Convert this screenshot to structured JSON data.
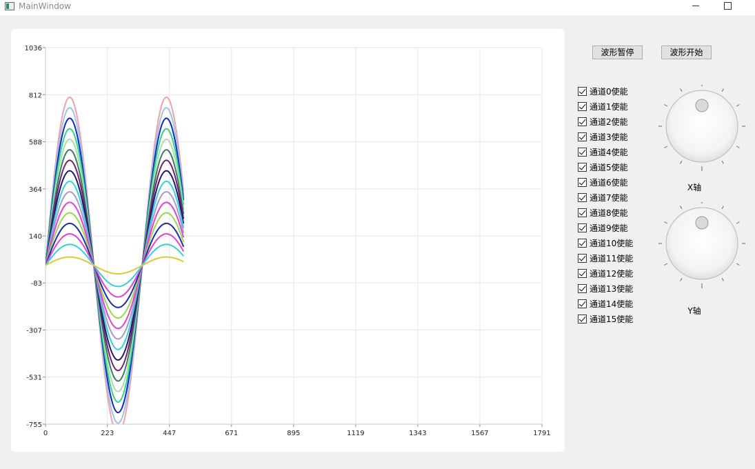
{
  "window": {
    "title": "MainWindow"
  },
  "buttons": {
    "pause": "波形暂停",
    "start": "波形开始"
  },
  "channels": [
    {
      "label": "通道0使能",
      "checked": true
    },
    {
      "label": "通道1使能",
      "checked": true
    },
    {
      "label": "通道2使能",
      "checked": true
    },
    {
      "label": "通道3使能",
      "checked": true
    },
    {
      "label": "通道4使能",
      "checked": true
    },
    {
      "label": "通道5使能",
      "checked": true
    },
    {
      "label": "通道6使能",
      "checked": true
    },
    {
      "label": "通道7使能",
      "checked": true
    },
    {
      "label": "通道8使能",
      "checked": true
    },
    {
      "label": "通道9使能",
      "checked": true
    },
    {
      "label": "通道10使能",
      "checked": true
    },
    {
      "label": "通道11使能",
      "checked": true
    },
    {
      "label": "通道12使能",
      "checked": true
    },
    {
      "label": "通道13使能",
      "checked": true
    },
    {
      "label": "通道14使能",
      "checked": true
    },
    {
      "label": "通道15使能",
      "checked": true
    }
  ],
  "dials": {
    "x_label": "X轴",
    "y_label": "Y轴"
  },
  "chart_data": {
    "type": "line",
    "xlim": [
      0,
      1791
    ],
    "ylim": [
      -755,
      1036
    ],
    "x_ticks": [
      "0",
      "223",
      "447",
      "671",
      "895",
      "1119",
      "1343",
      "1567",
      "1791"
    ],
    "y_ticks": [
      "1036",
      "812",
      "588",
      "364",
      "140",
      "-83",
      "-307",
      "-531",
      "-755"
    ],
    "grid": true,
    "x_range_plotted": [
      0,
      498
    ],
    "period": 349,
    "series": [
      {
        "amplitude": 800,
        "color": "#f2a0a8"
      },
      {
        "amplitude": 750,
        "color": "#9cc4e4"
      },
      {
        "amplitude": 700,
        "color": "#0a28c8"
      },
      {
        "amplitude": 650,
        "color": "#2ed48a"
      },
      {
        "amplitude": 600,
        "color": "#a8e0a0"
      },
      {
        "amplitude": 550,
        "color": "#3a7a6a"
      },
      {
        "amplitude": 500,
        "color": "#7a1a78"
      },
      {
        "amplitude": 450,
        "color": "#1a1a6a"
      },
      {
        "amplitude": 400,
        "color": "#30d0e0"
      },
      {
        "amplitude": 350,
        "color": "#a898cc"
      },
      {
        "amplitude": 300,
        "color": "#e040d8"
      },
      {
        "amplitude": 250,
        "color": "#98d848"
      },
      {
        "amplitude": 200,
        "color": "#1a2ab0"
      },
      {
        "amplitude": 150,
        "color": "#e040d8"
      },
      {
        "amplitude": 100,
        "color": "#30d0e0"
      },
      {
        "amplitude": 40,
        "color": "#e0c830"
      }
    ]
  }
}
